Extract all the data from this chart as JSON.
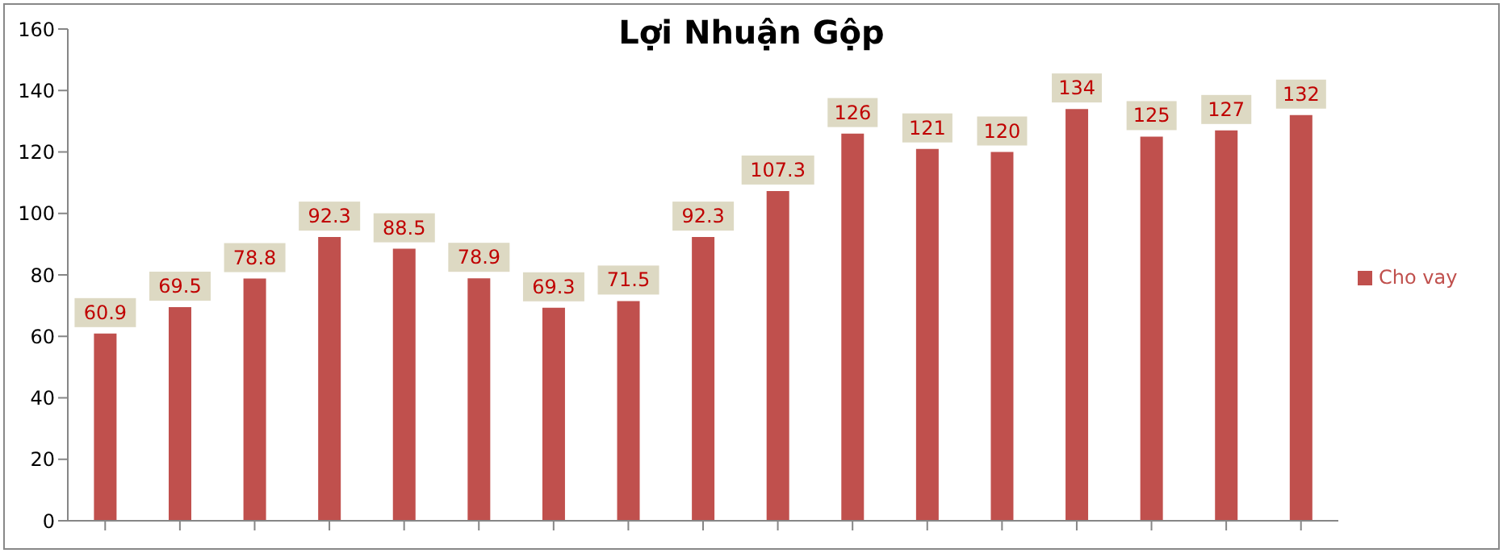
{
  "chart_data": {
    "type": "bar",
    "title": "Lợi Nhuận Gộp",
    "categories": [
      null,
      null,
      null,
      null,
      null,
      null,
      null,
      null,
      null,
      null,
      null,
      null,
      null,
      null,
      null,
      null,
      null
    ],
    "series": [
      {
        "name": "Cho vay",
        "color": "#c0504d",
        "values": [
          60.9,
          69.5,
          78.8,
          92.3,
          88.5,
          78.9,
          69.3,
          71.5,
          92.3,
          107.3,
          126,
          121,
          120,
          134,
          125,
          127,
          132
        ]
      }
    ],
    "ylim": [
      0,
      160
    ],
    "yticks": [
      0,
      20,
      40,
      60,
      80,
      100,
      120,
      140,
      160
    ],
    "grid": false,
    "legend": "right",
    "data_labels": true
  }
}
